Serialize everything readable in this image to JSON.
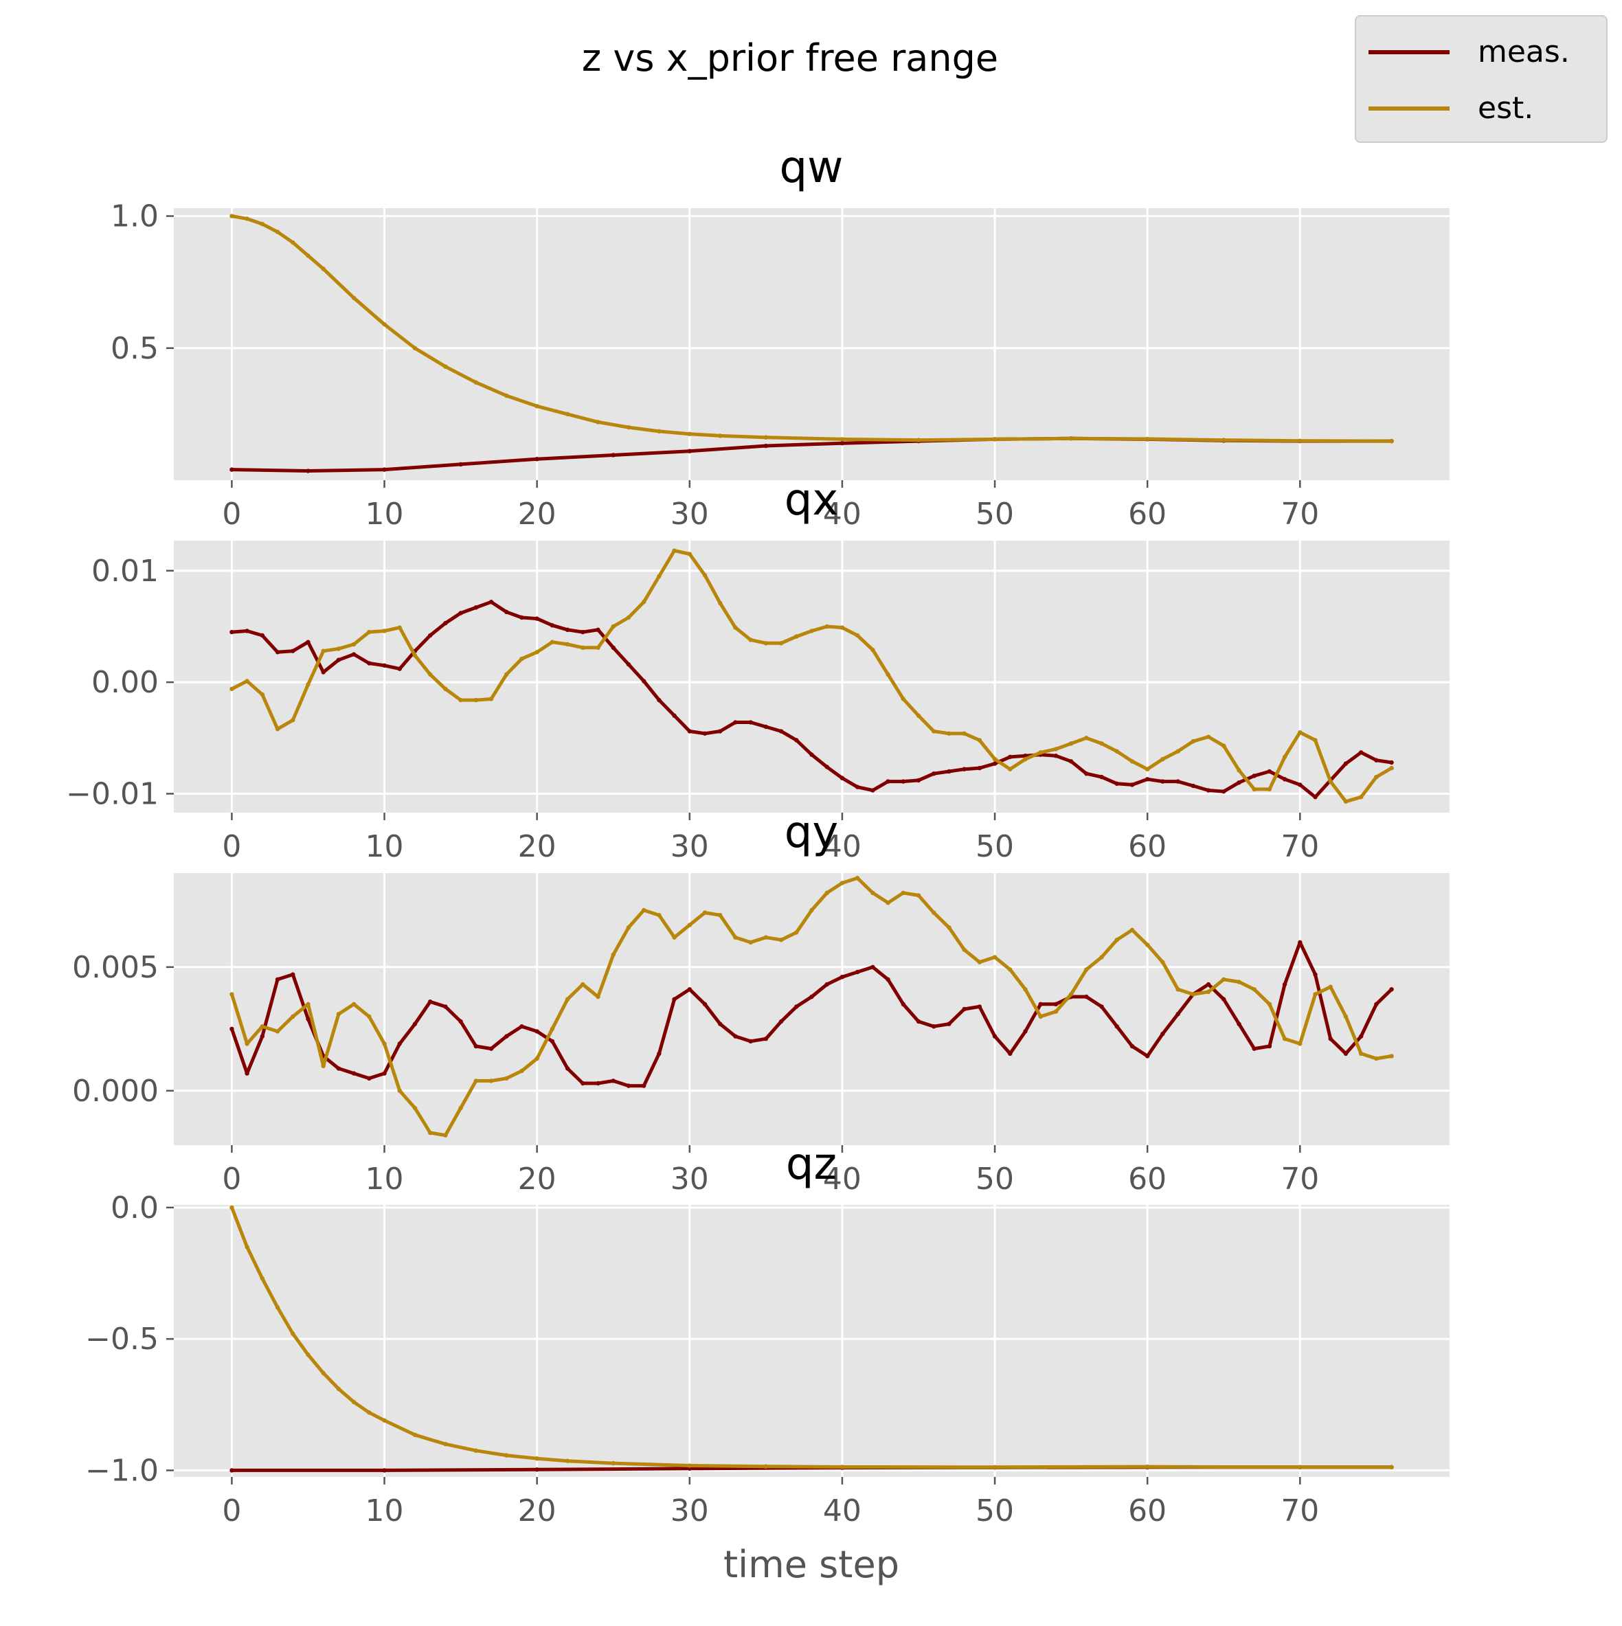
{
  "figure": {
    "title": "z vs x_prior free range"
  },
  "legend": {
    "placement": "upper-right",
    "items": [
      {
        "label": "meas.",
        "color": "#800000"
      },
      {
        "label": "est.",
        "color": "#b8860b"
      }
    ]
  },
  "chart_data": [
    {
      "type": "line",
      "title": "qw",
      "xlabel": "",
      "ylabel": "",
      "xlim": [
        -3.8,
        79.8
      ],
      "ylim": [
        0.0,
        1.03
      ],
      "xticks": [
        0,
        10,
        20,
        30,
        40,
        50,
        60,
        70
      ],
      "xtick_labels": [
        "0",
        "10",
        "20",
        "30",
        "40",
        "50",
        "60",
        "70"
      ],
      "yticks": [
        0.5,
        1.0
      ],
      "ytick_labels": [
        "0.5",
        "1.0"
      ],
      "grid": true,
      "series": [
        {
          "name": "meas.",
          "x": [
            0,
            5,
            10,
            15,
            20,
            25,
            30,
            35,
            40,
            45,
            50,
            55,
            60,
            65,
            70,
            76
          ],
          "values": [
            0.04,
            0.035,
            0.04,
            0.06,
            0.08,
            0.095,
            0.11,
            0.13,
            0.14,
            0.148,
            0.155,
            0.158,
            0.155,
            0.15,
            0.148,
            0.148
          ]
        },
        {
          "name": "est.",
          "x": [
            0,
            1,
            2,
            3,
            4,
            5,
            6,
            8,
            10,
            12,
            14,
            16,
            18,
            20,
            22,
            24,
            26,
            28,
            30,
            32,
            35,
            40,
            45,
            50,
            55,
            60,
            65,
            70,
            76
          ],
          "values": [
            1.0,
            0.99,
            0.97,
            0.94,
            0.9,
            0.85,
            0.8,
            0.69,
            0.59,
            0.5,
            0.43,
            0.37,
            0.32,
            0.28,
            0.25,
            0.22,
            0.2,
            0.185,
            0.175,
            0.168,
            0.162,
            0.155,
            0.152,
            0.155,
            0.158,
            0.156,
            0.152,
            0.149,
            0.148
          ]
        }
      ]
    },
    {
      "type": "line",
      "title": "qx",
      "xlabel": "",
      "ylabel": "",
      "xlim": [
        -3.8,
        79.8
      ],
      "ylim": [
        -0.0117,
        0.0127
      ],
      "xticks": [
        0,
        10,
        20,
        30,
        40,
        50,
        60,
        70
      ],
      "xtick_labels": [
        "0",
        "10",
        "20",
        "30",
        "40",
        "50",
        "60",
        "70"
      ],
      "yticks": [
        -0.01,
        0.0,
        0.01
      ],
      "ytick_labels": [
        "−0.01",
        "0.00",
        "0.01"
      ],
      "grid": true,
      "series": [
        {
          "name": "meas.",
          "x": [
            0,
            1,
            2,
            3,
            4,
            5,
            6,
            7,
            8,
            9,
            10,
            11,
            12,
            13,
            14,
            15,
            16,
            17,
            18,
            19,
            20,
            21,
            22,
            23,
            24,
            25,
            26,
            27,
            28,
            29,
            30,
            31,
            32,
            33,
            34,
            35,
            36,
            37,
            38,
            39,
            40,
            41,
            42,
            43,
            44,
            45,
            46,
            47,
            48,
            49,
            50,
            51,
            52,
            53,
            54,
            55,
            56,
            57,
            58,
            59,
            60,
            61,
            62,
            63,
            64,
            65,
            66,
            67,
            68,
            69,
            70,
            71,
            72,
            73,
            74,
            75,
            76
          ],
          "values": [
            0.0045,
            0.0046,
            0.0042,
            0.0027,
            0.0028,
            0.0036,
            0.0009,
            0.002,
            0.0025,
            0.0017,
            0.0015,
            0.0012,
            0.0028,
            0.0042,
            0.0053,
            0.0062,
            0.0067,
            0.0072,
            0.0063,
            0.0058,
            0.0057,
            0.0051,
            0.0047,
            0.0045,
            0.0047,
            0.0031,
            0.0016,
            0.0001,
            -0.0016,
            -0.003,
            -0.0044,
            -0.0046,
            -0.0044,
            -0.0036,
            -0.0036,
            -0.004,
            -0.0044,
            -0.0052,
            -0.0065,
            -0.0076,
            -0.0086,
            -0.0094,
            -0.0097,
            -0.0089,
            -0.0089,
            -0.0088,
            -0.0082,
            -0.008,
            -0.0078,
            -0.0077,
            -0.0073,
            -0.0067,
            -0.0066,
            -0.0065,
            -0.0066,
            -0.0071,
            -0.0082,
            -0.0085,
            -0.0091,
            -0.0092,
            -0.0087,
            -0.0089,
            -0.0089,
            -0.0093,
            -0.0097,
            -0.0098,
            -0.009,
            -0.0084,
            -0.008,
            -0.0087,
            -0.0092,
            -0.0103,
            -0.0088,
            -0.0073,
            -0.0063,
            -0.007,
            -0.0072
          ]
        },
        {
          "name": "est.",
          "x": [
            0,
            1,
            2,
            3,
            4,
            5,
            6,
            7,
            8,
            9,
            10,
            11,
            12,
            13,
            14,
            15,
            16,
            17,
            18,
            19,
            20,
            21,
            22,
            23,
            24,
            25,
            26,
            27,
            28,
            29,
            30,
            31,
            32,
            33,
            34,
            35,
            36,
            37,
            38,
            39,
            40,
            41,
            42,
            43,
            44,
            45,
            46,
            47,
            48,
            49,
            50,
            51,
            52,
            53,
            54,
            55,
            56,
            57,
            58,
            59,
            60,
            61,
            62,
            63,
            64,
            65,
            66,
            67,
            68,
            69,
            70,
            71,
            72,
            73,
            74,
            75,
            76
          ],
          "values": [
            -0.0006,
            0.0001,
            -0.0011,
            -0.0042,
            -0.0034,
            -0.0002,
            0.0028,
            0.003,
            0.0034,
            0.0045,
            0.0046,
            0.0049,
            0.0024,
            0.0007,
            -0.0006,
            -0.0016,
            -0.0016,
            -0.0015,
            0.0007,
            0.0021,
            0.0027,
            0.0036,
            0.0034,
            0.0031,
            0.0031,
            0.005,
            0.0058,
            0.0072,
            0.0095,
            0.0118,
            0.0115,
            0.0096,
            0.0071,
            0.0049,
            0.0038,
            0.0035,
            0.0035,
            0.0041,
            0.0046,
            0.005,
            0.0049,
            0.0042,
            0.0029,
            0.0007,
            -0.0015,
            -0.003,
            -0.0044,
            -0.0046,
            -0.0046,
            -0.0052,
            -0.0069,
            -0.0078,
            -0.0069,
            -0.0063,
            -0.006,
            -0.0055,
            -0.005,
            -0.0055,
            -0.0062,
            -0.0071,
            -0.0078,
            -0.0069,
            -0.0062,
            -0.0053,
            -0.0049,
            -0.0057,
            -0.0079,
            -0.0096,
            -0.0096,
            -0.0067,
            -0.0045,
            -0.0052,
            -0.0089,
            -0.0107,
            -0.0103,
            -0.0085,
            -0.0077
          ]
        }
      ]
    },
    {
      "type": "line",
      "title": "qy",
      "xlabel": "",
      "ylabel": "",
      "xlim": [
        -3.8,
        79.8
      ],
      "ylim": [
        -0.0022,
        0.0088
      ],
      "xticks": [
        0,
        10,
        20,
        30,
        40,
        50,
        60,
        70
      ],
      "xtick_labels": [
        "0",
        "10",
        "20",
        "30",
        "40",
        "50",
        "60",
        "70"
      ],
      "yticks": [
        0.0,
        0.005
      ],
      "ytick_labels": [
        "0.000",
        "0.005"
      ],
      "grid": true,
      "series": [
        {
          "name": "meas.",
          "x": [
            0,
            1,
            2,
            3,
            4,
            5,
            6,
            7,
            8,
            9,
            10,
            11,
            12,
            13,
            14,
            15,
            16,
            17,
            18,
            19,
            20,
            21,
            22,
            23,
            24,
            25,
            26,
            27,
            28,
            29,
            30,
            31,
            32,
            33,
            34,
            35,
            36,
            37,
            38,
            39,
            40,
            41,
            42,
            43,
            44,
            45,
            46,
            47,
            48,
            49,
            50,
            51,
            52,
            53,
            54,
            55,
            56,
            57,
            58,
            59,
            60,
            61,
            62,
            63,
            64,
            65,
            66,
            67,
            68,
            69,
            70,
            71,
            72,
            73,
            74,
            75,
            76
          ],
          "values": [
            0.0025,
            0.0007,
            0.0022,
            0.0045,
            0.0047,
            0.0029,
            0.0014,
            0.0009,
            0.0007,
            0.0005,
            0.0007,
            0.0019,
            0.0027,
            0.0036,
            0.0034,
            0.0028,
            0.0018,
            0.0017,
            0.0022,
            0.0026,
            0.0024,
            0.002,
            0.0009,
            0.0003,
            0.0003,
            0.0004,
            0.0002,
            0.0002,
            0.0015,
            0.0037,
            0.0041,
            0.0035,
            0.0027,
            0.0022,
            0.002,
            0.0021,
            0.0028,
            0.0034,
            0.0038,
            0.0043,
            0.0046,
            0.0048,
            0.005,
            0.0045,
            0.0035,
            0.0028,
            0.0026,
            0.0027,
            0.0033,
            0.0034,
            0.0022,
            0.0015,
            0.0024,
            0.0035,
            0.0035,
            0.0038,
            0.0038,
            0.0034,
            0.0026,
            0.0018,
            0.0014,
            0.0023,
            0.0031,
            0.0039,
            0.0043,
            0.0037,
            0.0027,
            0.0017,
            0.0018,
            0.0043,
            0.006,
            0.0047,
            0.0021,
            0.0015,
            0.0022,
            0.0035,
            0.0041
          ]
        },
        {
          "name": "est.",
          "x": [
            0,
            1,
            2,
            3,
            4,
            5,
            6,
            7,
            8,
            9,
            10,
            11,
            12,
            13,
            14,
            15,
            16,
            17,
            18,
            19,
            20,
            21,
            22,
            23,
            24,
            25,
            26,
            27,
            28,
            29,
            30,
            31,
            32,
            33,
            34,
            35,
            36,
            37,
            38,
            39,
            40,
            41,
            42,
            43,
            44,
            45,
            46,
            47,
            48,
            49,
            50,
            51,
            52,
            53,
            54,
            55,
            56,
            57,
            58,
            59,
            60,
            61,
            62,
            63,
            64,
            65,
            66,
            67,
            68,
            69,
            70,
            71,
            72,
            73,
            74,
            75,
            76
          ],
          "values": [
            0.0039,
            0.0019,
            0.0026,
            0.0024,
            0.003,
            0.0035,
            0.001,
            0.0031,
            0.0035,
            0.003,
            0.0019,
            0.0,
            -0.0007,
            -0.0017,
            -0.0018,
            -0.0007,
            0.0004,
            0.0004,
            0.0005,
            0.0008,
            0.0013,
            0.0025,
            0.0037,
            0.0043,
            0.0038,
            0.0055,
            0.0066,
            0.0073,
            0.0071,
            0.0062,
            0.0067,
            0.0072,
            0.0071,
            0.0062,
            0.006,
            0.0062,
            0.0061,
            0.0064,
            0.0073,
            0.008,
            0.0084,
            0.0086,
            0.008,
            0.0076,
            0.008,
            0.0079,
            0.0072,
            0.0066,
            0.0057,
            0.0052,
            0.0054,
            0.0049,
            0.0041,
            0.003,
            0.0032,
            0.0039,
            0.0049,
            0.0054,
            0.0061,
            0.0065,
            0.0059,
            0.0052,
            0.0041,
            0.0039,
            0.004,
            0.0045,
            0.0044,
            0.0041,
            0.0035,
            0.0021,
            0.0019,
            0.0039,
            0.0042,
            0.003,
            0.0015,
            0.0013,
            0.0014
          ]
        }
      ]
    },
    {
      "type": "line",
      "title": "qz",
      "xlabel": "time step",
      "ylabel": "",
      "xlim": [
        -3.8,
        79.8
      ],
      "ylim": [
        -1.025,
        0.01
      ],
      "xticks": [
        0,
        10,
        20,
        30,
        40,
        50,
        60,
        70
      ],
      "xtick_labels": [
        "0",
        "10",
        "20",
        "30",
        "40",
        "50",
        "60",
        "70"
      ],
      "yticks": [
        -1.0,
        -0.5,
        0.0
      ],
      "ytick_labels": [
        "−1.0",
        "−0.5",
        "0.0"
      ],
      "grid": true,
      "series": [
        {
          "name": "meas.",
          "x": [
            0,
            10,
            20,
            30,
            40,
            50,
            60,
            70,
            76
          ],
          "values": [
            -1.0,
            -1.0,
            -0.997,
            -0.993,
            -0.99,
            -0.989,
            -0.988,
            -0.988,
            -0.988
          ]
        },
        {
          "name": "est.",
          "x": [
            0,
            1,
            2,
            3,
            4,
            5,
            6,
            7,
            8,
            9,
            10,
            12,
            14,
            16,
            18,
            20,
            22,
            25,
            30,
            35,
            40,
            50,
            60,
            70,
            76
          ],
          "values": [
            0.0,
            -0.15,
            -0.27,
            -0.38,
            -0.48,
            -0.56,
            -0.63,
            -0.69,
            -0.74,
            -0.78,
            -0.81,
            -0.865,
            -0.9,
            -0.925,
            -0.943,
            -0.955,
            -0.964,
            -0.973,
            -0.982,
            -0.985,
            -0.987,
            -0.988,
            -0.986,
            -0.988,
            -0.988
          ]
        }
      ]
    }
  ]
}
